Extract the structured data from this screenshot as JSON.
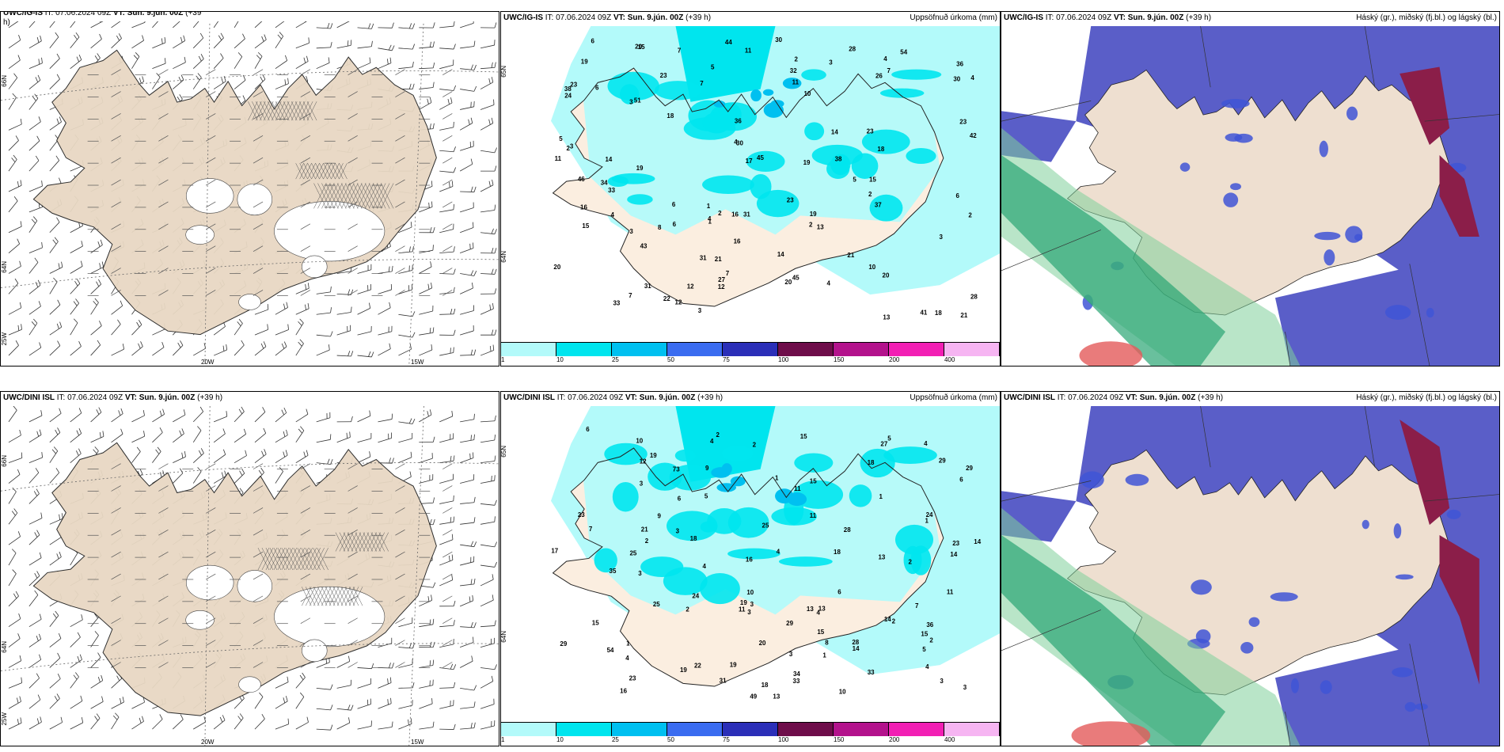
{
  "panels": [
    {
      "id": "p1",
      "title_model": "UWC/IG-IS",
      "title_it": "IT: 07.06.2024 09Z",
      "title_vt": "VT: Sun. 9.jún. 00Z",
      "title_lead": "(+39",
      "title_lead2": "h)",
      "right": ""
    },
    {
      "id": "p2",
      "title_model": "UWC/IG-IS",
      "title_it": "IT: 07.06.2024 09Z",
      "title_vt": "VT: Sun. 9.jún. 00Z",
      "title_lead": "(+39 h)",
      "right": "Uppsöfnuð úrkoma (mm)"
    },
    {
      "id": "p3",
      "title_model": "UWC/IG-IS",
      "title_it": "IT: 07.06.2024 09Z",
      "title_vt": "VT: Sun. 9.jún. 00Z",
      "title_lead": "(+39 h)",
      "right": "Háský (gr.), miðský (fj.bl.) og lágský (bl.)"
    },
    {
      "id": "p4",
      "title_model": "UWC/DINI ISL",
      "title_it": "IT: 07.06.2024 09Z",
      "title_vt": "VT: Sun. 9.jún. 00Z",
      "title_lead": "(+39 h)",
      "right": ""
    },
    {
      "id": "p5",
      "title_model": "UWC/DINI ISL",
      "title_it": "IT: 07.06.2024 09Z",
      "title_vt": "VT: Sun. 9.jún. 00Z",
      "title_lead": "(+39 h)",
      "right": "Uppsöfnuð úrkoma (mm)"
    },
    {
      "id": "p6",
      "title_model": "UWC/DINI ISL",
      "title_it": "IT: 07.06.2024 09Z",
      "title_vt": "VT: Sun. 9.jún. 00Z",
      "title_lead": "(+39 h)",
      "right": "Háský (gr.), miðský (fj.bl.) og lágský (bl.)"
    }
  ],
  "axis_labels": {
    "lat66": "66N",
    "lat64": "64N",
    "lon20": "20W",
    "lon15": "15W",
    "lon25": "25W"
  },
  "colorbar": {
    "labels": [
      "1",
      "10",
      "25",
      "50",
      "75",
      "100",
      "150",
      "200",
      "400"
    ],
    "colors": [
      "#b3fafa",
      "#00e5ee",
      "#00c0f0",
      "#3a6cf0",
      "#2b2fb8",
      "#6e0d4a",
      "#b3128c",
      "#f21fb4",
      "#f6b5f2"
    ]
  },
  "precip_numbers_top": [
    "11",
    "11",
    "23",
    "36",
    "38",
    "41",
    "34",
    "10",
    "36",
    "54",
    "45",
    "37",
    "44",
    "24",
    "51",
    "43",
    "45",
    "46",
    "23",
    "16",
    "21",
    "20",
    "30",
    "30",
    "31",
    "17",
    "19",
    "15",
    "12",
    "20",
    "16",
    "13",
    "19",
    "33",
    "22",
    "15",
    "18",
    "19",
    "12",
    "18",
    "14",
    "38",
    "28",
    "42",
    "31",
    "8",
    "26",
    "20",
    "27",
    "19",
    "14",
    "10",
    "13",
    "15",
    "4",
    "5",
    "2",
    "4",
    "4",
    "11",
    "16",
    "7",
    "23",
    "21",
    "18",
    "14",
    "21",
    "6",
    "12",
    "5",
    "3",
    "6",
    "20",
    "31",
    "32",
    "23",
    "28",
    "33",
    "30",
    "23",
    "4",
    "3",
    "5",
    "3",
    "3",
    "2",
    "7",
    "6",
    "7",
    "6",
    "7",
    "4",
    "3",
    "2",
    "6",
    "1",
    "7",
    "2",
    "2",
    "2",
    "3",
    "1",
    "4"
  ],
  "precip_numbers_bottom": [
    "8",
    "25",
    "24",
    "19",
    "4",
    "3",
    "6",
    "5",
    "13",
    "11",
    "9",
    "16",
    "28",
    "15",
    "16",
    "15",
    "35",
    "33",
    "20",
    "19",
    "4",
    "5",
    "12",
    "4",
    "9",
    "31",
    "36",
    "73",
    "54",
    "49",
    "29",
    "18",
    "28",
    "13",
    "11",
    "14",
    "17",
    "23",
    "25",
    "14",
    "10",
    "14",
    "15",
    "18",
    "29",
    "13",
    "10",
    "11",
    "11",
    "34",
    "15",
    "22",
    "6",
    "2",
    "1",
    "18",
    "19",
    "14",
    "7",
    "10",
    "18",
    "13",
    "15",
    "1",
    "2",
    "6",
    "29",
    "23",
    "21",
    "33",
    "19",
    "24",
    "29",
    "4",
    "27",
    "25",
    "23",
    "4",
    "3",
    "3",
    "3",
    "2",
    "1",
    "2",
    "2",
    "2",
    "3",
    "3",
    "1",
    "1",
    "4",
    "7",
    "3",
    "5",
    "4",
    "6",
    "3",
    "2"
  ]
}
